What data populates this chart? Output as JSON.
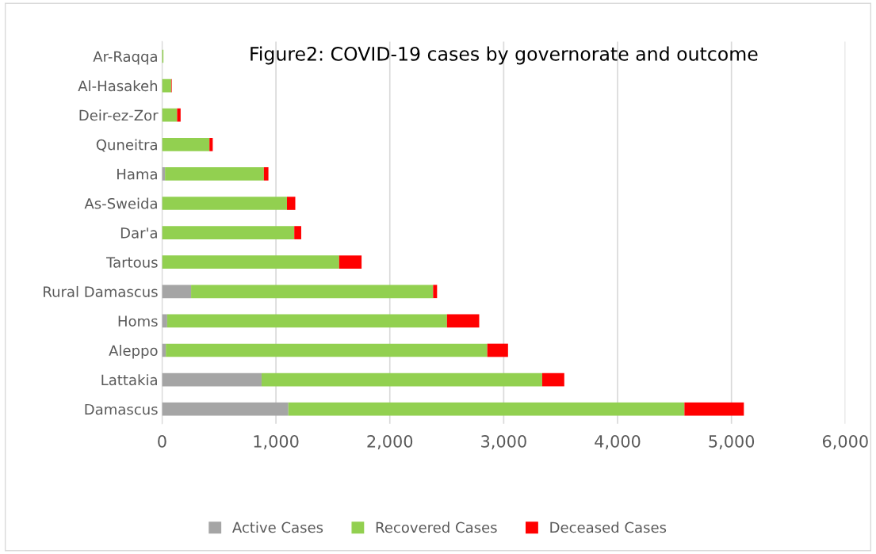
{
  "chart_data": {
    "type": "bar",
    "orientation": "horizontal",
    "stacked": true,
    "title": "Figure2: COVID-19 cases by governorate and outcome",
    "categories": [
      "Ar-Raqqa",
      "Al-Hasakeh",
      "Deir-ez-Zor",
      "Quneitra",
      "Hama",
      "As-Sweida",
      "Dar'a",
      "Tartous",
      "Rural Damascus",
      "Homs",
      "Aleppo",
      "Lattakia",
      "Damascus"
    ],
    "series": [
      {
        "name": "Active Cases",
        "color": "#a5a5a5",
        "values": [
          0,
          0,
          0,
          0,
          26,
          0,
          0,
          0,
          255,
          45,
          33,
          874,
          1109
        ]
      },
      {
        "name": "Recovered Cases",
        "color": "#92d050",
        "values": [
          12,
          80,
          132,
          416,
          868,
          1097,
          1161,
          1555,
          2125,
          2457,
          2823,
          2464,
          3478
        ]
      },
      {
        "name": "Deceased Cases",
        "color": "#ff0000",
        "values": [
          0,
          5,
          31,
          29,
          40,
          73,
          61,
          197,
          35,
          283,
          182,
          194,
          522
        ]
      }
    ],
    "xlim": [
      0,
      6000
    ],
    "xticks": [
      {
        "value": 0,
        "label": "0"
      },
      {
        "value": 1000,
        "label": "1,000"
      },
      {
        "value": 2000,
        "label": "2,000"
      },
      {
        "value": 3000,
        "label": "3,000"
      },
      {
        "value": 4000,
        "label": "4,000"
      },
      {
        "value": 5000,
        "label": "5,000"
      },
      {
        "value": 6000,
        "label": "6,000"
      }
    ],
    "grid": "x",
    "legend": "bottom"
  }
}
